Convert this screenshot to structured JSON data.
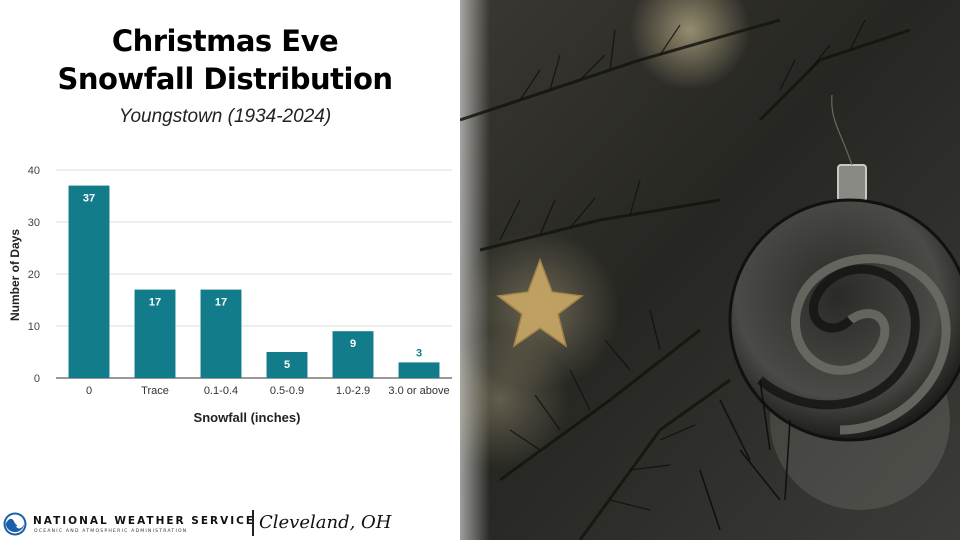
{
  "slide": {
    "title_line1": "Christmas Eve",
    "title_line2": "Snowfall Distribution",
    "subtitle": "Youngstown (1934-2024)"
  },
  "footer": {
    "agency": "NATIONAL WEATHER SERVICE",
    "agency_sub": "OCEANIC AND ATMOSPHERIC ADMINISTRATION",
    "office": "Cleveland, OH"
  },
  "colors": {
    "bar": "#137c8b",
    "grid": "#dddddd",
    "axis": "#333333"
  },
  "chart_data": {
    "type": "bar",
    "categories": [
      "0",
      "Trace",
      "0.1-0.4",
      "0.5-0.9",
      "1.0-2.9",
      "3.0 or above"
    ],
    "values": [
      37,
      17,
      17,
      5,
      9,
      3
    ],
    "xlabel": "Snowfall (inches)",
    "ylabel": "Number of Days",
    "ylim": [
      0,
      40
    ],
    "yticks": [
      "0",
      "10",
      "20",
      "30",
      "40"
    ],
    "grid": true
  }
}
